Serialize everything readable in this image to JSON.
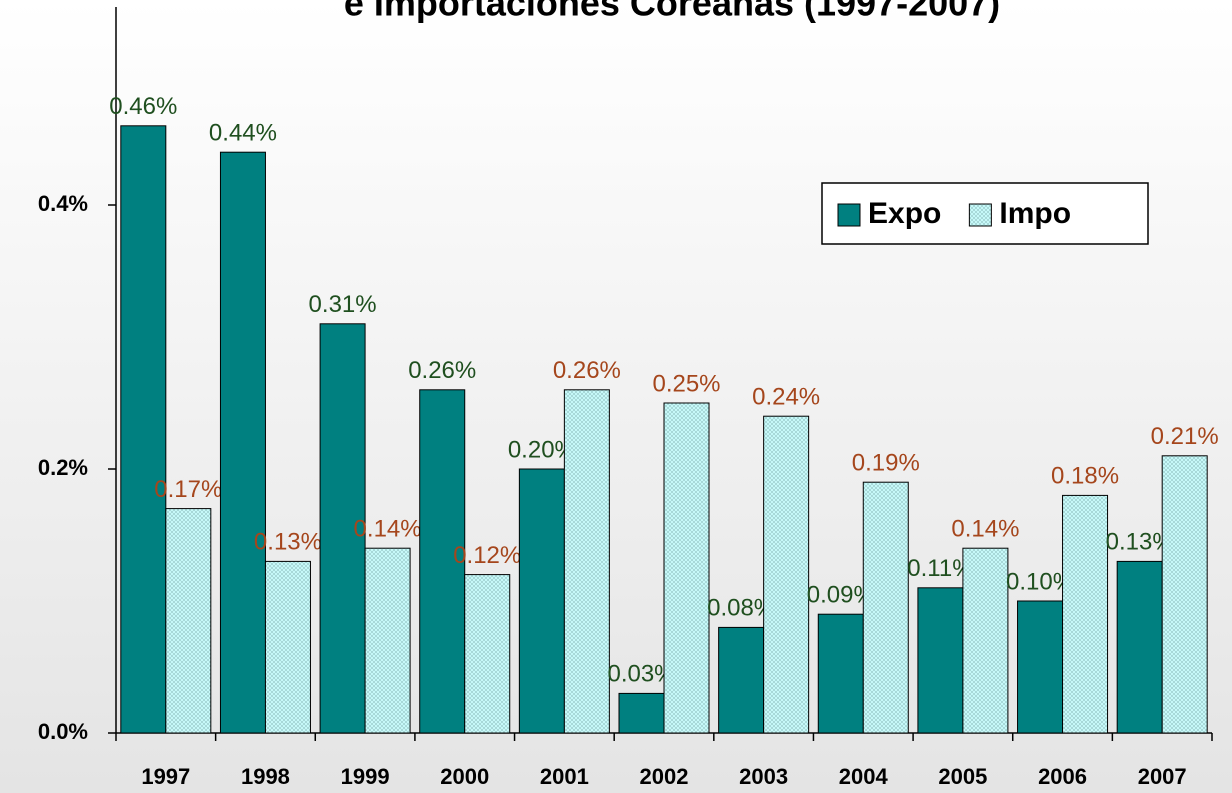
{
  "chart_data": {
    "type": "bar",
    "title": "e Importaciones Coreanas (1997-2007)",
    "categories": [
      "1997",
      "1998",
      "1999",
      "2000",
      "2001",
      "2002",
      "2003",
      "2004",
      "2005",
      "2006",
      "2007"
    ],
    "series": [
      {
        "name": "Expo",
        "color": "#008080",
        "label_color": "#1f4f1f",
        "values": [
          0.46,
          0.44,
          0.31,
          0.26,
          0.2,
          0.03,
          0.08,
          0.09,
          0.11,
          0.1,
          0.13
        ],
        "value_labels": [
          "0.46%",
          "0.44%",
          "0.31%",
          "0.26%",
          "0.20%",
          "0.03%",
          "0.08%",
          "0.09%",
          "0.11%",
          "0.10%",
          "0.13%"
        ]
      },
      {
        "name": "Impo",
        "color": "#ccffff",
        "label_color": "#a5461c",
        "values": [
          0.17,
          0.13,
          0.14,
          0.12,
          0.26,
          0.25,
          0.24,
          0.19,
          0.14,
          0.18,
          0.21
        ],
        "value_labels": [
          "0.17%",
          "0.13%",
          "0.14%",
          "0.12%",
          "0.26%",
          "0.25%",
          "0.24%",
          "0.19%",
          "0.14%",
          "0.18%",
          "0.21%"
        ]
      }
    ],
    "ylim": [
      0,
      0.55
    ],
    "yticks": [
      {
        "value": 0,
        "label": "0.0%"
      },
      {
        "value": 0.2,
        "label": "0.2%"
      },
      {
        "value": 0.4,
        "label": "0.4%"
      }
    ],
    "legend": "top-right"
  }
}
